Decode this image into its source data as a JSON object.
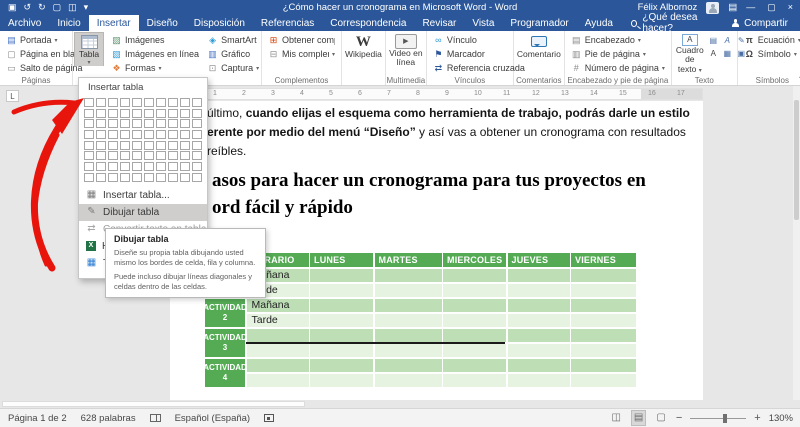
{
  "chrome": {
    "accent": "#2b579a"
  },
  "titlebar": {
    "title": "¿Cómo hacer un cronograma en Microsoft Word - Word",
    "user_name": "Félix Albornoz"
  },
  "tab_bar": {
    "tabs": [
      {
        "label": "Archivo",
        "active": false
      },
      {
        "label": "Inicio",
        "active": false
      },
      {
        "label": "Insertar",
        "active": true
      },
      {
        "label": "Diseño",
        "active": false
      },
      {
        "label": "Disposición",
        "active": false
      },
      {
        "label": "Referencias",
        "active": false
      },
      {
        "label": "Correspondencia",
        "active": false
      },
      {
        "label": "Revisar",
        "active": false
      },
      {
        "label": "Vista",
        "active": false
      },
      {
        "label": "Programador",
        "active": false
      },
      {
        "label": "Ayuda",
        "active": false
      }
    ],
    "tell_me": "¿Qué desea hacer?",
    "share": "Compartir"
  },
  "ribbon": {
    "paginas": {
      "label": "Páginas",
      "portada": "Portada",
      "pagina_blanco": "Página en blanco",
      "salto": "Salto de página"
    },
    "tabla_button": "Tabla",
    "ilustraciones": {
      "imagenes": "Imágenes",
      "imagenes_linea": "Imágenes en línea",
      "formas": "Formas",
      "smartart": "SmartArt",
      "grafico": "Gráfico",
      "captura": "Captura"
    },
    "complementos": {
      "label": "Complementos",
      "obtener": "Obtener complementos",
      "mis": "Mis complementos",
      "wikipedia": "Wikipedia"
    },
    "multimedia": {
      "label": "Multimedia",
      "video": "Video en línea"
    },
    "vinculos": {
      "label": "Vínculos",
      "vinculo": "Vínculo",
      "marcador": "Marcador",
      "referencia": "Referencia cruzada"
    },
    "comentarios": {
      "label": "Comentarios",
      "comentario": "Comentario"
    },
    "encabezado_grp": {
      "label": "Encabezado y pie de página",
      "encabezado": "Encabezado",
      "pie": "Pie de página",
      "numero": "Número de página"
    },
    "texto": {
      "label": "Texto",
      "cuadro_l1": "Cuadro de",
      "cuadro_l2": "texto"
    },
    "simbolos": {
      "label": "Símbolos",
      "ecuacion": "Ecuación",
      "simbolo": "Símbolo"
    }
  },
  "table_dropdown": {
    "header": "Insertar tabla",
    "grid": {
      "cols": 10,
      "rows": 8
    },
    "insertar_tabla_item": "Insertar tabla...",
    "dibujar_tabla_item": "Dibujar tabla",
    "extra_items": [
      "Convertir texto en tabla...",
      "Hoja de cálculo de Excel",
      "Tablas rápidas"
    ]
  },
  "tooltip": {
    "title": "Dibujar tabla",
    "line1": "Diseñe su propia tabla dibujando usted mismo los bordes de celda, fila y columna.",
    "line2": "Puede incluso dibujar líneas diagonales y celdas dentro de las celdas."
  },
  "document": {
    "para": {
      "l1_normal": "último, ",
      "l1_bold": "cuando elijas el esquema como herramienta de trabajo, podrás darle un estilo",
      "l2_bold": "erente por medio del menú “Diseño”",
      "l2_normal": " y así vas a obtener un cronograma con resultados",
      "l3": "reíbles."
    },
    "heading_l1": "asos para hacer un cronograma para tus proyectos en",
    "heading_l2": "ord fácil y rápido",
    "ruler_numbers": [
      "1",
      "2",
      "3",
      "4",
      "5",
      "6",
      "7",
      "8",
      "9",
      "10",
      "11",
      "12",
      "13",
      "14",
      "15",
      "16",
      "17"
    ]
  },
  "schedule_table": {
    "headers": [
      "",
      "HORARIO",
      "LUNES",
      "MARTES",
      "MIERCOLES",
      "JUEVES",
      "VIERNES"
    ],
    "rows": [
      {
        "activity": "ACTIVIDAD 1",
        "slots": [
          "Mañana",
          "Tarde"
        ],
        "drawn_line": false
      },
      {
        "activity": "ACTIVIDAD 2",
        "slots": [
          "Mañana",
          "Tarde"
        ],
        "drawn_line": false
      },
      {
        "activity": "ACTIVIDAD 3",
        "slots": [
          "",
          ""
        ],
        "drawn_line": true
      },
      {
        "activity": "ACTIVIDAD 4",
        "slots": [
          "",
          ""
        ],
        "drawn_line": false
      }
    ],
    "colors": {
      "header_green": "#54ab54",
      "row_medium": "#bedfb6",
      "row_light": "#e6f3e0"
    }
  },
  "statusbar": {
    "page_info": "Página 1 de 2",
    "word_count": "628 palabras",
    "language": "Español (España)",
    "zoom_level": "130%"
  },
  "icons": {
    "save": "▣",
    "undo": "↺",
    "redo": "↻",
    "new_doc": "▢",
    "preview": "◫",
    "qat_more": "▾",
    "caret": "▾",
    "min": "—",
    "max": "▢",
    "close": "×",
    "ribbon_opts": "▤",
    "portada": "▤",
    "blank_page": "▢",
    "page_break": "▭",
    "imagenes": "▨",
    "imagenes_linea": "▧",
    "formas": "❖",
    "smartart": "◈",
    "grafico": "▥",
    "captura": "⊡",
    "store": "⊞",
    "addins": "⊟",
    "wikipedia_w": "W",
    "play": "▶",
    "link": "∞",
    "bookmark": "⚑",
    "crossref": "⇄",
    "header_i": "▤",
    "footer_i": "▥",
    "page_num": "#",
    "textbox_a": "A",
    "quick_parts": "▤",
    "wordart": "A",
    "signature": "✎",
    "datetime": "▦",
    "object_i": "▣",
    "pi": "π",
    "omega": "Ω",
    "grid_table": "▦",
    "pencil": "✎",
    "convert": "⇄",
    "excel_x": "X",
    "quick_tables": "▦",
    "collapse": "^",
    "lbox": "L",
    "view_read": "◫",
    "view_print": "▤",
    "view_web": "▢",
    "minus": "−",
    "plus": "+"
  }
}
